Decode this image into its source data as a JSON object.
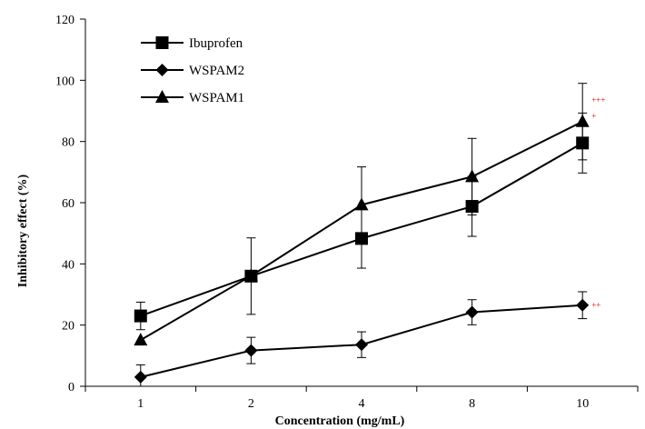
{
  "chart_data": {
    "type": "line",
    "title": "",
    "xlabel": "Concentration (mg/mL)",
    "ylabel": "Inhibitory  effect (%)",
    "categories": [
      "1",
      "2",
      "4",
      "8",
      "10"
    ],
    "ylim": [
      0,
      120
    ],
    "yticks": [
      0,
      20,
      40,
      60,
      80,
      100,
      120
    ],
    "grid": false,
    "legend_position": "top-left",
    "series": [
      {
        "name": "Ibuprofen",
        "marker": "square",
        "values": [
          23,
          36,
          48.3,
          58.8,
          79.5
        ],
        "error": [
          4.5,
          12.5,
          9.7,
          9.8,
          9.8
        ]
      },
      {
        "name": "WSPAM2",
        "marker": "diamond",
        "values": [
          3,
          11.7,
          13.6,
          24.2,
          26.5
        ],
        "error": [
          4.0,
          4.3,
          4.2,
          4.1,
          4.4
        ]
      },
      {
        "name": "WSPAM1",
        "marker": "triangle",
        "values": [
          15.1,
          36.1,
          59.3,
          68.5,
          86.5
        ],
        "error": [
          0,
          0,
          12.4,
          12.5,
          12.5
        ]
      }
    ],
    "annotations": [
      {
        "text": "+++",
        "category": "10",
        "y": 93.5,
        "color": "#e00000"
      },
      {
        "text": "+",
        "category": "10",
        "y": 88.3,
        "color": "#e00000"
      },
      {
        "text": "++",
        "category": "10",
        "y": 26.6,
        "color": "#e00000"
      }
    ]
  }
}
